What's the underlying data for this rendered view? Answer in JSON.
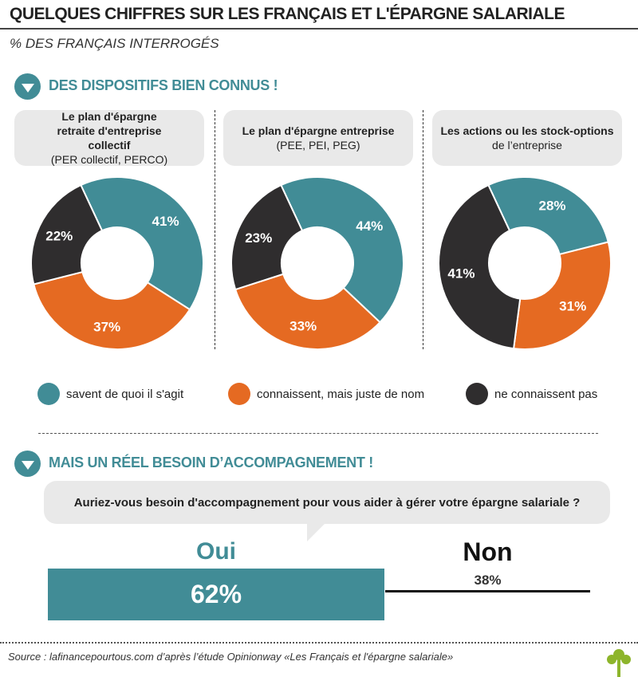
{
  "title": "QUELQUES CHIFFRES SUR LES FRANÇAIS ET L'ÉPARGNE SALARIALE",
  "subtitle": "% DES FRANÇAIS INTERROGÉS",
  "section1": "DES DISPOSITIFS BIEN CONNUS !",
  "section2": "MAIS UN RÉEL BESOIN D’ACCOMPAGNEMENT !",
  "colors": {
    "teal": "#418c96",
    "orange": "#e56a22",
    "dark": "#2f2d2e"
  },
  "chart_data": [
    {
      "type": "pie",
      "title_bold": "Le plan d'épargne retraite d'entreprise collectif",
      "title_sub": "(PER collectif, PERCO)",
      "categories": [
        "savent de quoi il s'agit",
        "connaissent, mais juste de nom",
        "ne connaissent pas"
      ],
      "values": [
        41,
        37,
        22
      ],
      "labels": [
        "41%",
        "37%",
        "22%"
      ]
    },
    {
      "type": "pie",
      "title_bold": "Le plan d'épargne entreprise",
      "title_sub": "(PEE, PEI, PEG)",
      "categories": [
        "savent de quoi il s'agit",
        "connaissent, mais juste de nom",
        "ne connaissent pas"
      ],
      "values": [
        44,
        33,
        23
      ],
      "labels": [
        "44%",
        "33%",
        "23%"
      ]
    },
    {
      "type": "pie",
      "title_bold": "Les actions ou les stock-options",
      "title_sub": "de l’entreprise",
      "categories": [
        "savent de quoi il s'agit",
        "connaissent, mais juste de nom",
        "ne connaissent pas"
      ],
      "values": [
        28,
        31,
        41
      ],
      "labels": [
        "28%",
        "31%",
        "41%"
      ]
    },
    {
      "type": "bar",
      "title": "Auriez-vous besoin d'accompagnement pour vous aider à gérer votre épargne salariale ?",
      "categories": [
        "Oui",
        "Non"
      ],
      "values": [
        62,
        38
      ],
      "labels": [
        "62%",
        "38%"
      ]
    }
  ],
  "legend": [
    "savent de quoi il s'agit",
    "connaissent, mais juste de nom",
    "ne connaissent pas"
  ],
  "source": "Source : lafinancepourtous.com d’après l’étude Opinionway «Les Français et l'épargne salariale»"
}
